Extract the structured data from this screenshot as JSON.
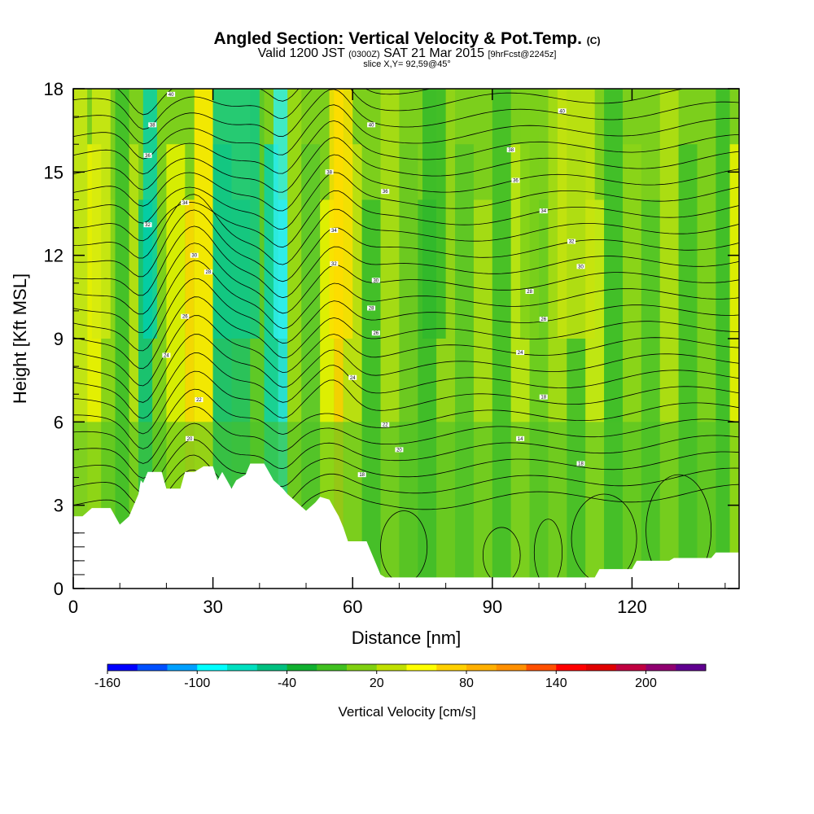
{
  "chart_data": {
    "type": "heatmap",
    "title": {
      "main": "Angled Section: Vertical Velocity & Pot.Temp.",
      "main_unit": "(C)",
      "valid_prefix": "Valid 1200 JST",
      "valid_utc": "(0300Z)",
      "valid_date": "SAT 21 Mar 2015",
      "forecast": "[9hrFcst@2245z]",
      "slice": "slice X,Y= 92,59@45°"
    },
    "xlabel": "Distance [nm]",
    "ylabel": "Height [Kft MSL]",
    "xlim": [
      0,
      143
    ],
    "ylim": [
      0,
      18
    ],
    "x_ticks": [
      0,
      30,
      60,
      90,
      120
    ],
    "y_ticks": [
      0,
      3,
      6,
      9,
      12,
      15,
      18
    ],
    "colorbar": {
      "label": "Vertical Velocity [cm/s]",
      "tick_labels": [
        "-160",
        "-100",
        "-40",
        "20",
        "80",
        "140",
        "200"
      ],
      "colors": [
        "#0000ff",
        "#0050ff",
        "#00a0ff",
        "#00ffff",
        "#00e0c0",
        "#00c080",
        "#10b030",
        "#40c020",
        "#80d010",
        "#c0e000",
        "#ffff00",
        "#ffd000",
        "#ffb000",
        "#ff9000",
        "#ff5000",
        "#ff0000",
        "#e00000",
        "#c00040",
        "#900070",
        "#600090"
      ]
    },
    "terrain": [
      [
        0,
        2.6
      ],
      [
        2,
        2.6
      ],
      [
        4,
        2.9
      ],
      [
        8,
        2.9
      ],
      [
        10,
        2.3
      ],
      [
        12,
        2.6
      ],
      [
        14,
        3.4
      ],
      [
        14.5,
        3.9
      ],
      [
        15,
        3.8
      ],
      [
        16,
        4.2
      ],
      [
        19,
        4.2
      ],
      [
        20,
        3.6
      ],
      [
        23,
        3.6
      ],
      [
        24,
        4.2
      ],
      [
        26,
        4.2
      ],
      [
        28,
        4.4
      ],
      [
        30,
        4.4
      ],
      [
        31,
        3.9
      ],
      [
        32,
        4.2
      ],
      [
        33,
        3.9
      ],
      [
        34,
        3.6
      ],
      [
        35,
        3.9
      ],
      [
        37,
        4.1
      ],
      [
        38,
        4.5
      ],
      [
        41,
        4.5
      ],
      [
        42,
        4.2
      ],
      [
        43,
        3.9
      ],
      [
        45,
        3.6
      ],
      [
        46,
        3.4
      ],
      [
        48,
        3.1
      ],
      [
        50,
        2.8
      ],
      [
        52,
        3.1
      ],
      [
        53,
        3.3
      ],
      [
        55,
        3.2
      ],
      [
        56,
        2.9
      ],
      [
        57,
        2.6
      ],
      [
        58,
        2.2
      ],
      [
        59,
        1.7
      ],
      [
        63,
        1.7
      ],
      [
        64,
        1.3
      ],
      [
        65,
        0.9
      ],
      [
        66,
        0.5
      ],
      [
        67,
        0.4
      ],
      [
        112,
        0.4
      ],
      [
        113,
        0.7
      ],
      [
        120,
        0.7
      ],
      [
        121,
        1.0
      ],
      [
        128,
        1.0
      ],
      [
        129,
        1.1
      ],
      [
        137,
        1.1
      ],
      [
        138,
        1.3
      ],
      [
        143,
        1.3
      ]
    ],
    "theta_contour_labels": [
      {
        "x": 21,
        "y": 17.8,
        "text": "40"
      },
      {
        "x": 17,
        "y": 16.7,
        "text": "38"
      },
      {
        "x": 16,
        "y": 15.6,
        "text": "36"
      },
      {
        "x": 24,
        "y": 13.9,
        "text": "34"
      },
      {
        "x": 16,
        "y": 13.1,
        "text": "32"
      },
      {
        "x": 26,
        "y": 12.0,
        "text": "30"
      },
      {
        "x": 29,
        "y": 11.4,
        "text": "28"
      },
      {
        "x": 24,
        "y": 9.8,
        "text": "26"
      },
      {
        "x": 20,
        "y": 8.4,
        "text": "24"
      },
      {
        "x": 27,
        "y": 6.8,
        "text": "22"
      },
      {
        "x": 25,
        "y": 5.4,
        "text": "20"
      },
      {
        "x": 64,
        "y": 16.7,
        "text": "40"
      },
      {
        "x": 55,
        "y": 15.0,
        "text": "38"
      },
      {
        "x": 67,
        "y": 14.3,
        "text": "36"
      },
      {
        "x": 56,
        "y": 12.9,
        "text": "34"
      },
      {
        "x": 56,
        "y": 11.7,
        "text": "32"
      },
      {
        "x": 65,
        "y": 11.1,
        "text": "30"
      },
      {
        "x": 64,
        "y": 10.1,
        "text": "28"
      },
      {
        "x": 65,
        "y": 9.2,
        "text": "26"
      },
      {
        "x": 60,
        "y": 7.6,
        "text": "24"
      },
      {
        "x": 67,
        "y": 5.9,
        "text": "22"
      },
      {
        "x": 70,
        "y": 5.0,
        "text": "20"
      },
      {
        "x": 62,
        "y": 4.1,
        "text": "18"
      },
      {
        "x": 105,
        "y": 17.2,
        "text": "40"
      },
      {
        "x": 94,
        "y": 15.8,
        "text": "38"
      },
      {
        "x": 95,
        "y": 14.7,
        "text": "36"
      },
      {
        "x": 101,
        "y": 13.6,
        "text": "34"
      },
      {
        "x": 107,
        "y": 12.5,
        "text": "32"
      },
      {
        "x": 109,
        "y": 11.6,
        "text": "30"
      },
      {
        "x": 98,
        "y": 10.7,
        "text": "28"
      },
      {
        "x": 101,
        "y": 9.7,
        "text": "26"
      },
      {
        "x": 96,
        "y": 8.5,
        "text": "24"
      },
      {
        "x": 101,
        "y": 6.9,
        "text": "18"
      },
      {
        "x": 96,
        "y": 5.4,
        "text": "14"
      },
      {
        "x": 109,
        "y": 4.5,
        "text": "18"
      }
    ]
  }
}
